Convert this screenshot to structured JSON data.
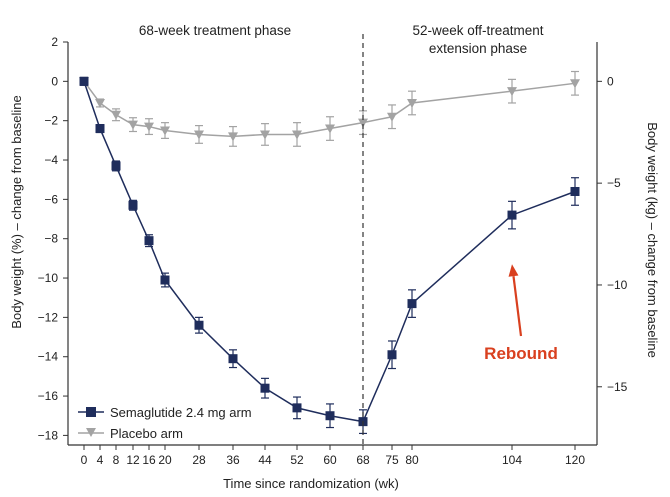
{
  "chart_data": {
    "type": "line",
    "phase_labels": {
      "left": "68-week treatment phase",
      "right_line1": "52-week off-treatment",
      "right_line2": "extension phase"
    },
    "xlabel": "Time since randomization (wk)",
    "ylabel_left": "Body weight (%) – change from baseline",
    "ylabel_right": "Body weight (kg) – change from baseline",
    "x_ticks": [
      0,
      4,
      8,
      12,
      16,
      20,
      28,
      36,
      44,
      52,
      60,
      68,
      75,
      80,
      104,
      120
    ],
    "x_tick_labels": [
      "0",
      "4",
      "8",
      "12",
      "16",
      "20",
      "28",
      "36",
      "44",
      "52",
      "60",
      "68",
      "75",
      "80",
      "104",
      "120"
    ],
    "ylim_left": [
      -18,
      2
    ],
    "y_ticks_left": [
      2,
      0,
      -2,
      -4,
      -6,
      -8,
      -10,
      -12,
      -14,
      -16,
      -18
    ],
    "y_tick_labels_left": [
      "2",
      "0",
      "−2",
      "−4",
      "−6",
      "−8",
      "−10",
      "−12",
      "−14",
      "−16",
      "−18"
    ],
    "y_ticks_right_kg": [
      0,
      -5,
      -10,
      -15
    ],
    "y_tick_labels_right": [
      "0",
      "−5",
      "−10",
      "−15"
    ],
    "kg_per_percent": 0.966,
    "treatment_end_week": 68,
    "series": [
      {
        "name": "Semaglutide 2.4 mg arm",
        "color": "#1f2d5c",
        "marker": "square",
        "x": [
          0,
          4,
          8,
          12,
          16,
          20,
          28,
          36,
          44,
          52,
          60,
          68,
          75,
          80,
          104,
          120
        ],
        "y": [
          0,
          -2.4,
          -4.3,
          -6.3,
          -8.1,
          -10.1,
          -12.4,
          -14.1,
          -15.6,
          -16.6,
          -17.0,
          -17.3,
          -13.9,
          -11.3,
          -6.8,
          -5.6
        ],
        "err": [
          0.2,
          0.2,
          0.25,
          0.25,
          0.3,
          0.35,
          0.4,
          0.45,
          0.5,
          0.55,
          0.6,
          0.6,
          0.7,
          0.7,
          0.7,
          0.7
        ]
      },
      {
        "name": "Placebo arm",
        "color": "#a3a3a3",
        "marker": "triangle-down",
        "x": [
          0,
          4,
          8,
          12,
          16,
          20,
          28,
          36,
          44,
          52,
          60,
          68,
          75,
          80,
          104,
          120
        ],
        "y": [
          0,
          -1.1,
          -1.7,
          -2.2,
          -2.3,
          -2.5,
          -2.7,
          -2.8,
          -2.7,
          -2.7,
          -2.4,
          -2.1,
          -1.8,
          -1.1,
          -0.5,
          -0.1
        ],
        "err": [
          0.15,
          0.2,
          0.3,
          0.35,
          0.4,
          0.4,
          0.45,
          0.5,
          0.55,
          0.6,
          0.6,
          0.6,
          0.6,
          0.6,
          0.6,
          0.6
        ]
      }
    ],
    "annotation": {
      "text": "Rebound",
      "color": "#d9401f",
      "arrow_target": {
        "x": 104,
        "y": -9.3
      }
    },
    "legend_position": "bottom-left",
    "grid": false
  }
}
